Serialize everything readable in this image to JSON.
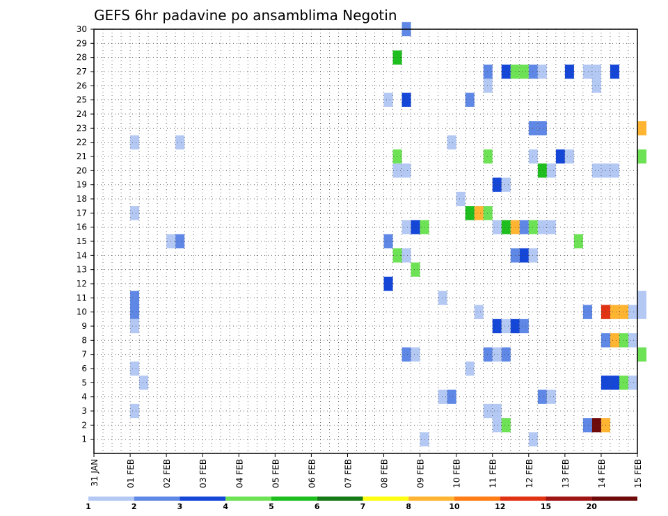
{
  "chart_data": {
    "type": "heatmap",
    "title": "GEFS 6hr padavine po ansamblima Negotin",
    "x_tick_labels": [
      "31 JAN",
      "01 FEB",
      "02 FEB",
      "03 FEB",
      "04 FEB",
      "05 FEB",
      "06 FEB",
      "07 FEB",
      "08 FEB",
      "09 FEB",
      "10 FEB",
      "11 FEB",
      "12 FEB",
      "13 FEB",
      "14 FEB",
      "15 FEB"
    ],
    "y_tick_labels": [
      "1",
      "2",
      "3",
      "4",
      "5",
      "6",
      "7",
      "8",
      "9",
      "10",
      "11",
      "12",
      "13",
      "14",
      "15",
      "16",
      "17",
      "18",
      "19",
      "20",
      "21",
      "22",
      "23",
      "24",
      "25",
      "26",
      "27",
      "28",
      "29",
      "30"
    ],
    "x_range_days": [
      0,
      15
    ],
    "y_range": [
      0,
      30
    ],
    "grid": true,
    "color_scale": {
      "labels": [
        "1",
        "2",
        "3",
        "4",
        "5",
        "6",
        "7",
        "8",
        "10",
        "12",
        "15",
        "20"
      ],
      "colors": [
        "#b4c8f4",
        "#5f88e6",
        "#1446d8",
        "#6ee255",
        "#1fbe1f",
        "#157a15",
        "#ffff14",
        "#ffb432",
        "#ff7d14",
        "#e13214",
        "#a01414",
        "#6e0a0a"
      ]
    },
    "cells": [
      {
        "x": 8.5,
        "y": 30,
        "c": 1
      },
      {
        "x": 8.25,
        "y": 28,
        "c": 4
      },
      {
        "x": 10.75,
        "y": 27,
        "c": 1
      },
      {
        "x": 11.25,
        "y": 27,
        "c": 2
      },
      {
        "x": 11.5,
        "y": 27,
        "c": 3
      },
      {
        "x": 11.75,
        "y": 27,
        "c": 3
      },
      {
        "x": 12,
        "y": 27,
        "c": 1
      },
      {
        "x": 12.25,
        "y": 27,
        "c": 0
      },
      {
        "x": 13,
        "y": 27,
        "c": 2
      },
      {
        "x": 13.5,
        "y": 27,
        "c": 0
      },
      {
        "x": 13.75,
        "y": 27,
        "c": 0
      },
      {
        "x": 14.25,
        "y": 27,
        "c": 2
      },
      {
        "x": 10.75,
        "y": 26,
        "c": 0
      },
      {
        "x": 13.75,
        "y": 26,
        "c": 0
      },
      {
        "x": 8,
        "y": 25,
        "c": 0
      },
      {
        "x": 8.5,
        "y": 25,
        "c": 2
      },
      {
        "x": 10.25,
        "y": 25,
        "c": 1
      },
      {
        "x": 12,
        "y": 23,
        "c": 1
      },
      {
        "x": 12.25,
        "y": 23,
        "c": 1
      },
      {
        "x": 15,
        "y": 23,
        "c": 7
      },
      {
        "x": 1,
        "y": 22,
        "c": 0
      },
      {
        "x": 2.25,
        "y": 22,
        "c": 0
      },
      {
        "x": 9.75,
        "y": 22,
        "c": 0
      },
      {
        "x": 8.25,
        "y": 21,
        "c": 3
      },
      {
        "x": 10.75,
        "y": 21,
        "c": 3
      },
      {
        "x": 12,
        "y": 21,
        "c": 0
      },
      {
        "x": 12.75,
        "y": 21,
        "c": 2
      },
      {
        "x": 13,
        "y": 21,
        "c": 0
      },
      {
        "x": 15,
        "y": 21,
        "c": 3
      },
      {
        "x": 8.25,
        "y": 20,
        "c": 0
      },
      {
        "x": 8.5,
        "y": 20,
        "c": 0
      },
      {
        "x": 12.25,
        "y": 20,
        "c": 4
      },
      {
        "x": 12.5,
        "y": 20,
        "c": 0
      },
      {
        "x": 13.75,
        "y": 20,
        "c": 0
      },
      {
        "x": 14,
        "y": 20,
        "c": 0
      },
      {
        "x": 14.25,
        "y": 20,
        "c": 0
      },
      {
        "x": 11,
        "y": 19,
        "c": 2
      },
      {
        "x": 11.25,
        "y": 19,
        "c": 0
      },
      {
        "x": 10,
        "y": 18,
        "c": 0
      },
      {
        "x": 1,
        "y": 17,
        "c": 0
      },
      {
        "x": 10.25,
        "y": 17,
        "c": 4
      },
      {
        "x": 10.5,
        "y": 17,
        "c": 7
      },
      {
        "x": 10.75,
        "y": 17,
        "c": 3
      },
      {
        "x": 8.5,
        "y": 16,
        "c": 0
      },
      {
        "x": 8.75,
        "y": 16,
        "c": 2
      },
      {
        "x": 9,
        "y": 16,
        "c": 3
      },
      {
        "x": 11,
        "y": 16,
        "c": 0
      },
      {
        "x": 11.25,
        "y": 16,
        "c": 4
      },
      {
        "x": 11.5,
        "y": 16,
        "c": 7
      },
      {
        "x": 11.75,
        "y": 16,
        "c": 1
      },
      {
        "x": 12,
        "y": 16,
        "c": 3
      },
      {
        "x": 12.25,
        "y": 16,
        "c": 0
      },
      {
        "x": 12.5,
        "y": 16,
        "c": 0
      },
      {
        "x": 2,
        "y": 15,
        "c": 0
      },
      {
        "x": 2.25,
        "y": 15,
        "c": 1
      },
      {
        "x": 8,
        "y": 15,
        "c": 1
      },
      {
        "x": 13.25,
        "y": 15,
        "c": 3
      },
      {
        "x": 8.25,
        "y": 14,
        "c": 3
      },
      {
        "x": 8.5,
        "y": 14,
        "c": 0
      },
      {
        "x": 11.5,
        "y": 14,
        "c": 1
      },
      {
        "x": 11.75,
        "y": 14,
        "c": 2
      },
      {
        "x": 12,
        "y": 14,
        "c": 0
      },
      {
        "x": 8.75,
        "y": 13,
        "c": 3
      },
      {
        "x": 8,
        "y": 12,
        "c": 2
      },
      {
        "x": 1,
        "y": 11,
        "c": 1
      },
      {
        "x": 9.5,
        "y": 11,
        "c": 0
      },
      {
        "x": 15,
        "y": 11,
        "c": 0
      },
      {
        "x": 1,
        "y": 10,
        "c": 1
      },
      {
        "x": 10.5,
        "y": 10,
        "c": 0
      },
      {
        "x": 13.5,
        "y": 10,
        "c": 1
      },
      {
        "x": 14,
        "y": 10,
        "c": 9
      },
      {
        "x": 14.25,
        "y": 10,
        "c": 7
      },
      {
        "x": 14.5,
        "y": 10,
        "c": 7
      },
      {
        "x": 14.75,
        "y": 10,
        "c": 0
      },
      {
        "x": 15,
        "y": 10,
        "c": 0
      },
      {
        "x": 1,
        "y": 9,
        "c": 0
      },
      {
        "x": 11,
        "y": 9,
        "c": 2
      },
      {
        "x": 11.25,
        "y": 9,
        "c": 0
      },
      {
        "x": 11.5,
        "y": 9,
        "c": 2
      },
      {
        "x": 11.75,
        "y": 9,
        "c": 1
      },
      {
        "x": 14,
        "y": 8,
        "c": 1
      },
      {
        "x": 14.25,
        "y": 8,
        "c": 7
      },
      {
        "x": 14.5,
        "y": 8,
        "c": 3
      },
      {
        "x": 14.75,
        "y": 8,
        "c": 0
      },
      {
        "x": 8.5,
        "y": 7,
        "c": 1
      },
      {
        "x": 8.75,
        "y": 7,
        "c": 0
      },
      {
        "x": 10.75,
        "y": 7,
        "c": 1
      },
      {
        "x": 11,
        "y": 7,
        "c": 0
      },
      {
        "x": 11.25,
        "y": 7,
        "c": 1
      },
      {
        "x": 15,
        "y": 7,
        "c": 3
      },
      {
        "x": 1,
        "y": 6,
        "c": 0
      },
      {
        "x": 10.25,
        "y": 6,
        "c": 0
      },
      {
        "x": 1.25,
        "y": 5,
        "c": 0
      },
      {
        "x": 14,
        "y": 5,
        "c": 2
      },
      {
        "x": 14.25,
        "y": 5,
        "c": 2
      },
      {
        "x": 14.5,
        "y": 5,
        "c": 3
      },
      {
        "x": 14.75,
        "y": 5,
        "c": 0
      },
      {
        "x": 9.5,
        "y": 4,
        "c": 0
      },
      {
        "x": 9.75,
        "y": 4,
        "c": 1
      },
      {
        "x": 12.25,
        "y": 4,
        "c": 1
      },
      {
        "x": 12.5,
        "y": 4,
        "c": 0
      },
      {
        "x": 1,
        "y": 3,
        "c": 0
      },
      {
        "x": 10.75,
        "y": 3,
        "c": 0
      },
      {
        "x": 11,
        "y": 3,
        "c": 0
      },
      {
        "x": 11,
        "y": 2,
        "c": 0
      },
      {
        "x": 11.25,
        "y": 2,
        "c": 3
      },
      {
        "x": 13.5,
        "y": 2,
        "c": 1
      },
      {
        "x": 13.75,
        "y": 2,
        "c": 11
      },
      {
        "x": 14,
        "y": 2,
        "c": 7
      },
      {
        "x": 9,
        "y": 1,
        "c": 0
      },
      {
        "x": 12,
        "y": 1,
        "c": 0
      }
    ]
  }
}
